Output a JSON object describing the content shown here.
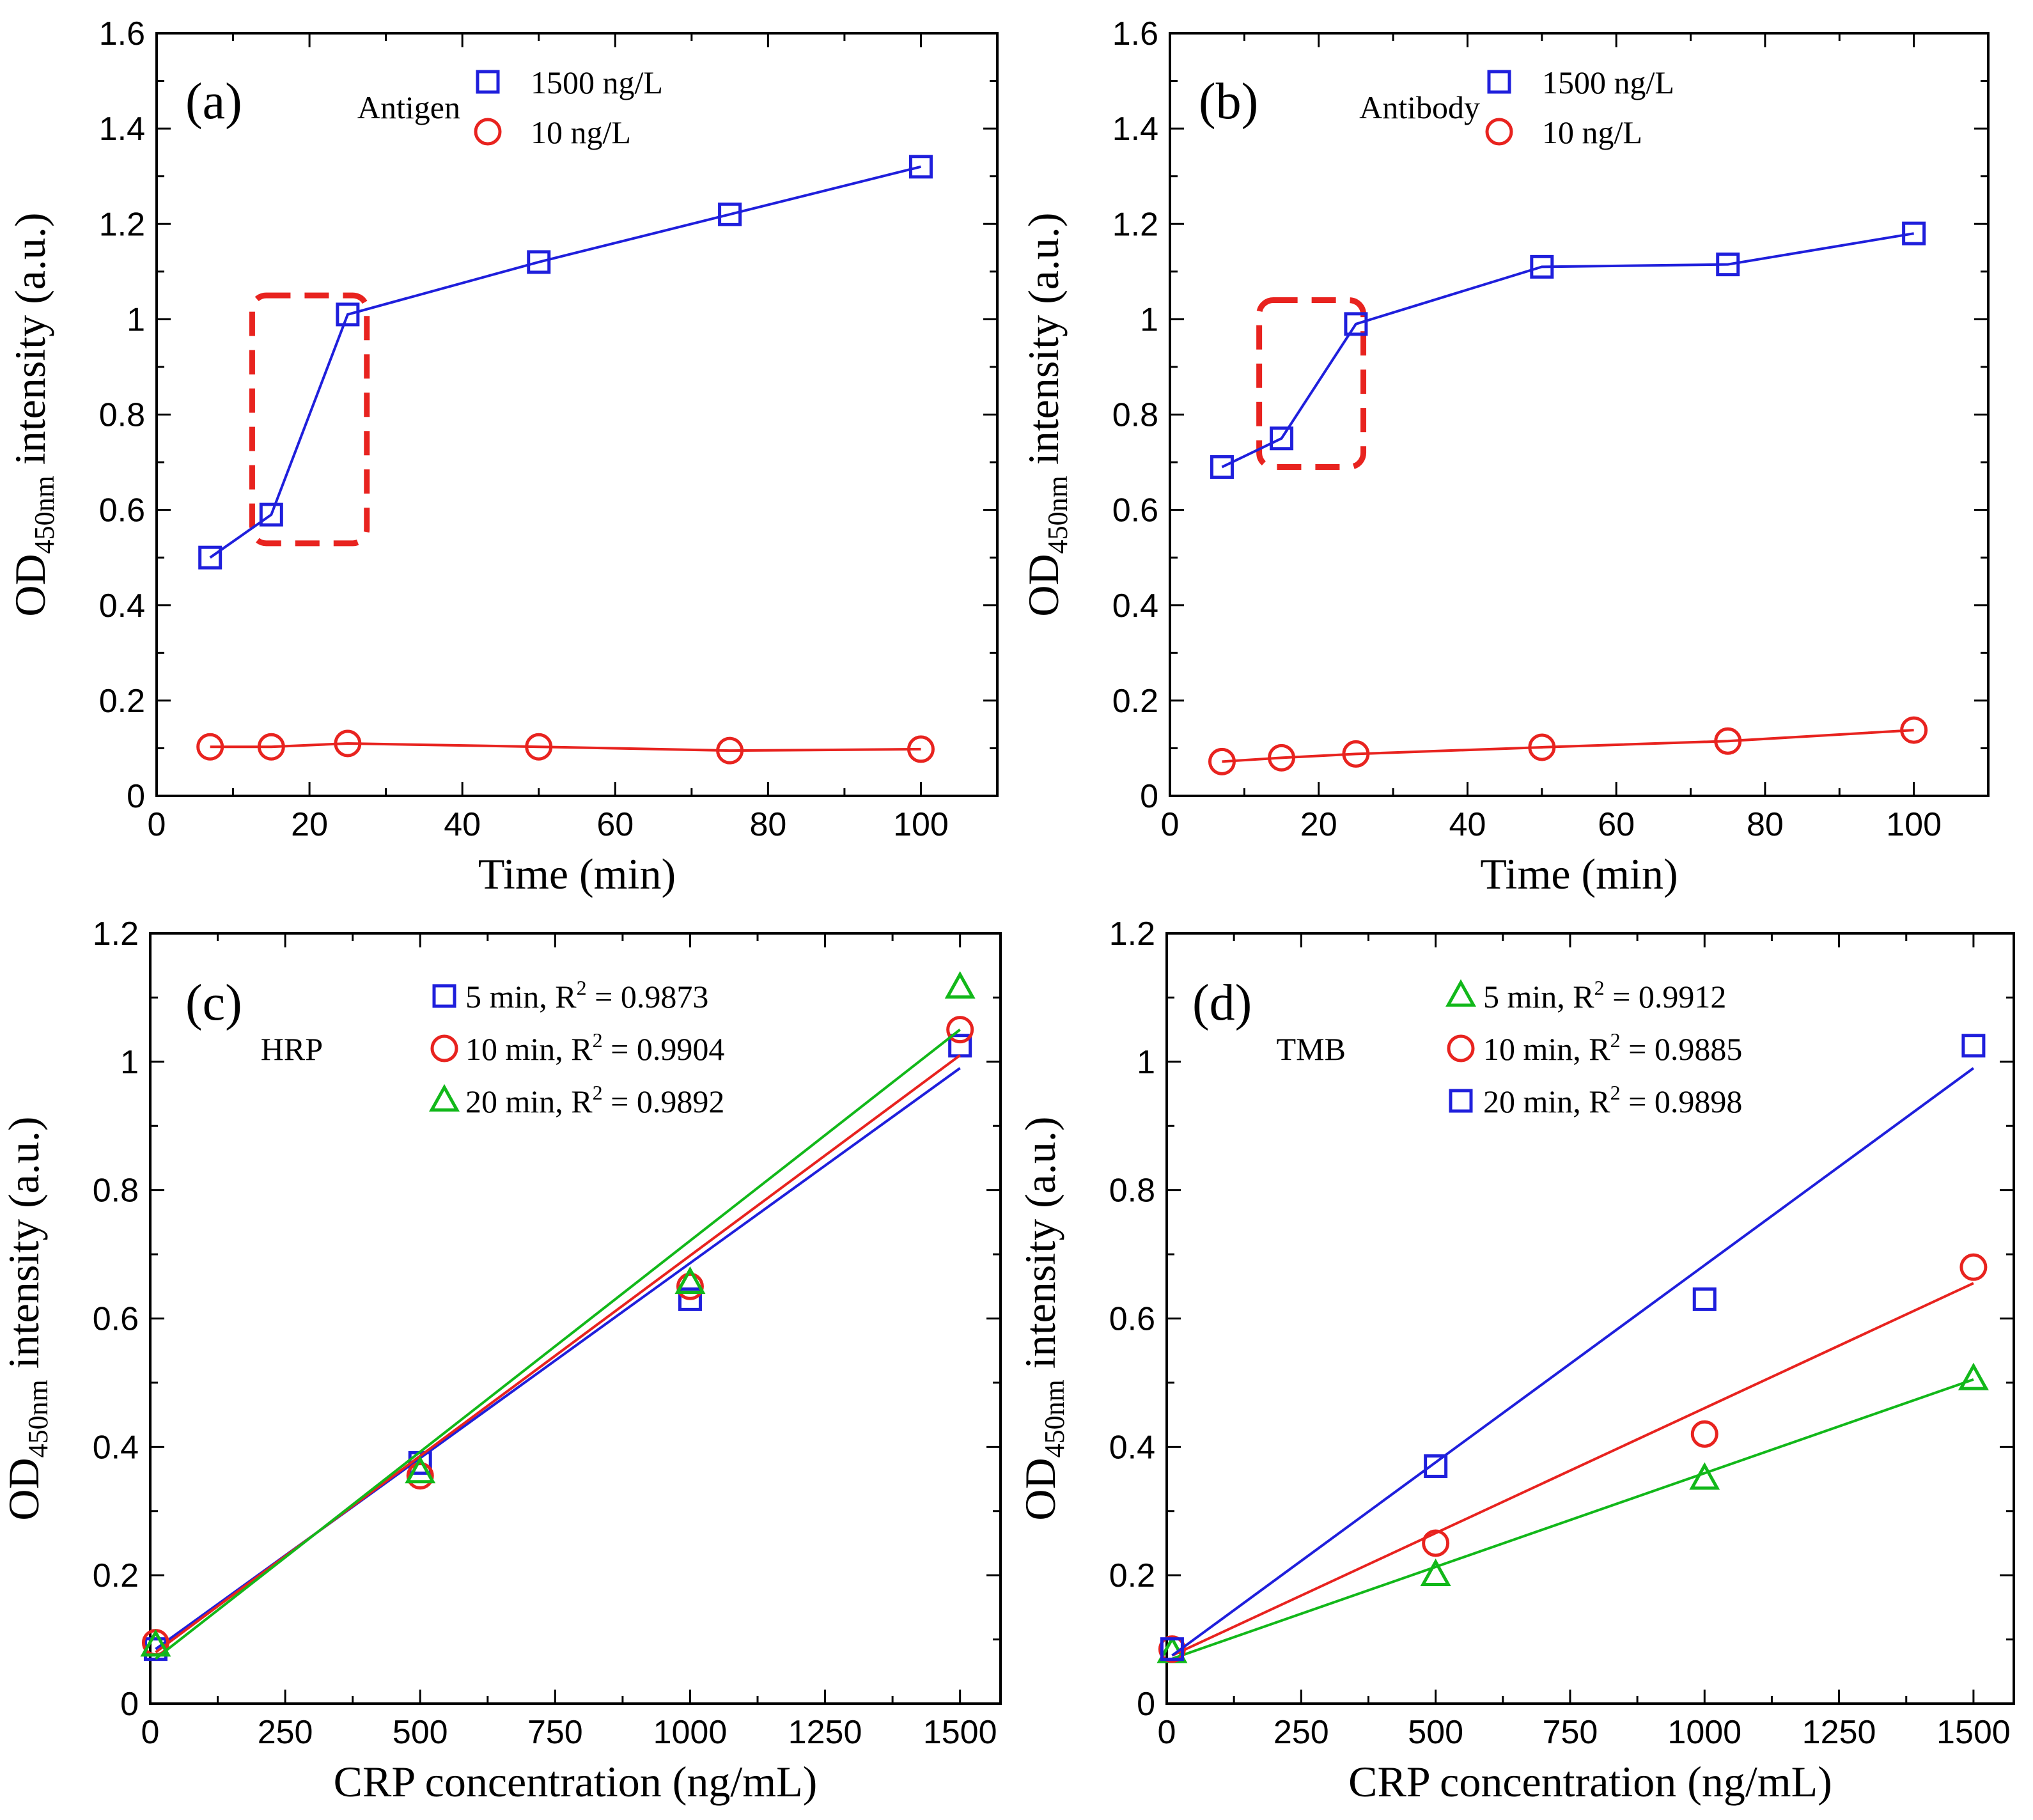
{
  "chart_data": [
    {
      "type": "line",
      "panel": "(a)",
      "legend_title": "Antigen",
      "xlabel": "Time (min)",
      "ylabel_main": "OD",
      "ylabel_sub": "450nm",
      "ylabel_tail": " intensity (a.u.)",
      "xlim": [
        0,
        110
      ],
      "ylim": [
        0,
        1.6
      ],
      "xticks": [
        0,
        20,
        40,
        60,
        80,
        100
      ],
      "yticks": [
        0,
        0.2,
        0.4,
        0.6,
        0.8,
        1,
        1.2,
        1.4,
        1.6
      ],
      "highlight_box": {
        "x": [
          12.5,
          27.5
        ],
        "y": [
          0.53,
          1.05
        ]
      },
      "series": [
        {
          "name": "1500 ng/L",
          "color": "#1f1fdc",
          "marker": "square",
          "x": [
            7,
            15,
            25,
            50,
            75,
            100
          ],
          "y": [
            0.5,
            0.59,
            1.01,
            1.12,
            1.22,
            1.32
          ]
        },
        {
          "name": "10 ng/L",
          "color": "#e8231f",
          "marker": "circle",
          "x": [
            7,
            15,
            25,
            50,
            75,
            100
          ],
          "y": [
            0.103,
            0.103,
            0.11,
            0.103,
            0.095,
            0.098
          ]
        }
      ]
    },
    {
      "type": "line",
      "panel": "(b)",
      "legend_title": "Antibody",
      "xlabel": "Time (min)",
      "ylabel_main": "OD",
      "ylabel_sub": "450nm",
      "ylabel_tail": " intensity (a.u.)",
      "xlim": [
        0,
        110
      ],
      "ylim": [
        0,
        1.6
      ],
      "xticks": [
        0,
        20,
        40,
        60,
        80,
        100
      ],
      "yticks": [
        0,
        0.2,
        0.4,
        0.6,
        0.8,
        1,
        1.2,
        1.4,
        1.6
      ],
      "highlight_box": {
        "x": [
          12,
          26
        ],
        "y": [
          0.69,
          1.04
        ]
      },
      "series": [
        {
          "name": "1500 ng/L",
          "color": "#1f1fdc",
          "marker": "square",
          "x": [
            7,
            15,
            25,
            50,
            75,
            100
          ],
          "y": [
            0.69,
            0.75,
            0.99,
            1.11,
            1.115,
            1.18
          ]
        },
        {
          "name": "10 ng/L",
          "color": "#e8231f",
          "marker": "circle",
          "x": [
            7,
            15,
            25,
            50,
            75,
            100
          ],
          "y": [
            0.072,
            0.08,
            0.088,
            0.102,
            0.115,
            0.138
          ]
        }
      ]
    },
    {
      "type": "scatter",
      "panel": "(c)",
      "legend_title": "HRP",
      "xlabel": "CRP concentration (ng/mL)",
      "ylabel_main": "OD",
      "ylabel_sub": "450nm",
      "ylabel_tail": " intensity (a.u.)",
      "xlim": [
        0,
        1575
      ],
      "ylim": [
        0,
        1.2
      ],
      "xticks": [
        0,
        250,
        500,
        750,
        1000,
        1250,
        1500
      ],
      "yticks": [
        0,
        0.2,
        0.4,
        0.6,
        0.8,
        1,
        1.2
      ],
      "series": [
        {
          "name": "5 min, R",
          "r2": "0.9873",
          "color": "#1f1fdc",
          "marker": "square",
          "x": [
            10,
            500,
            1000,
            1500
          ],
          "y": [
            0.085,
            0.375,
            0.63,
            1.025
          ],
          "fit": [
            [
              10,
              0.085
            ],
            [
              1500,
              0.99
            ]
          ]
        },
        {
          "name": "10 min, R",
          "r2": "0.9904",
          "color": "#e8231f",
          "marker": "circle",
          "x": [
            10,
            500,
            1000,
            1500
          ],
          "y": [
            0.095,
            0.355,
            0.65,
            1.05
          ],
          "fit": [
            [
              10,
              0.08
            ],
            [
              1500,
              1.01
            ]
          ]
        },
        {
          "name": "20 min, R",
          "r2": "0.9892",
          "color": "#12b81a",
          "marker": "triangle",
          "x": [
            10,
            500,
            1000,
            1500
          ],
          "y": [
            0.09,
            0.36,
            0.655,
            1.115
          ],
          "fit": [
            [
              10,
              0.07
            ],
            [
              1500,
              1.05
            ]
          ]
        }
      ]
    },
    {
      "type": "scatter",
      "panel": "(d)",
      "legend_title": "TMB",
      "xlabel": "CRP concentration (ng/mL)",
      "ylabel_main": "OD",
      "ylabel_sub": "450nm",
      "ylabel_tail": " intensity (a.u.)",
      "xlim": [
        0,
        1575
      ],
      "ylim": [
        0,
        1.2
      ],
      "xticks": [
        0,
        250,
        500,
        750,
        1000,
        1250,
        1500
      ],
      "yticks": [
        0,
        0.2,
        0.4,
        0.6,
        0.8,
        1,
        1.2
      ],
      "series": [
        {
          "name": "5 min, R",
          "r2": "0.9912",
          "color": "#12b81a",
          "marker": "triangle",
          "x": [
            10,
            500,
            1000,
            1500
          ],
          "y": [
            0.08,
            0.2,
            0.35,
            0.505
          ],
          "fit": [
            [
              10,
              0.07
            ],
            [
              1500,
              0.505
            ]
          ]
        },
        {
          "name": "10 min, R",
          "r2": "0.9885",
          "color": "#e8231f",
          "marker": "circle",
          "x": [
            10,
            500,
            1000,
            1500
          ],
          "y": [
            0.085,
            0.25,
            0.42,
            0.68
          ],
          "fit": [
            [
              10,
              0.075
            ],
            [
              1500,
              0.655
            ]
          ]
        },
        {
          "name": "20 min, R",
          "r2": "0.9898",
          "color": "#1f1fdc",
          "marker": "square",
          "x": [
            10,
            500,
            1000,
            1500
          ],
          "y": [
            0.085,
            0.37,
            0.63,
            1.025
          ],
          "fit": [
            [
              10,
              0.075
            ],
            [
              1500,
              0.99
            ]
          ]
        }
      ]
    }
  ]
}
